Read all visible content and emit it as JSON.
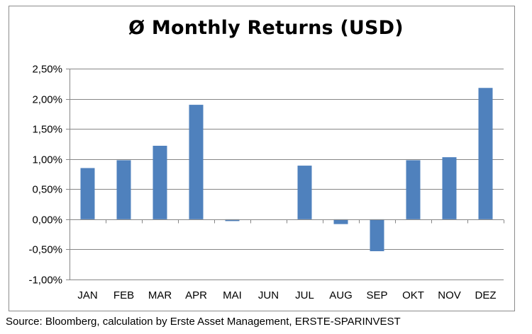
{
  "chart_data": {
    "type": "bar",
    "title": "Ø Monthly Returns (USD)",
    "xlabel": "",
    "ylabel": "",
    "categories": [
      "JAN",
      "FEB",
      "MAR",
      "APR",
      "MAI",
      "JUN",
      "JUL",
      "AUG",
      "SEP",
      "OKT",
      "NOV",
      "DEZ"
    ],
    "values": [
      0.85,
      0.98,
      1.22,
      1.9,
      -0.03,
      0.0,
      0.89,
      -0.08,
      -0.53,
      0.98,
      1.03,
      2.18
    ],
    "value_unit": "%",
    "ylim": [
      -1.0,
      2.5
    ],
    "yticks": [
      2.5,
      2.0,
      1.5,
      1.0,
      0.5,
      0.0,
      -0.5,
      -1.0
    ],
    "ytick_labels": [
      "2,50%",
      "2,00%",
      "1,50%",
      "1,00%",
      "0,50%",
      "0,00%",
      "-0,50%",
      "-1,00%"
    ],
    "grid": true,
    "legend": "none",
    "bar_color": "#4f81bd",
    "grid_color": "#868686"
  },
  "source": "Source: Bloomberg, calculation by Erste Asset Management, ERSTE-SPARINVEST"
}
